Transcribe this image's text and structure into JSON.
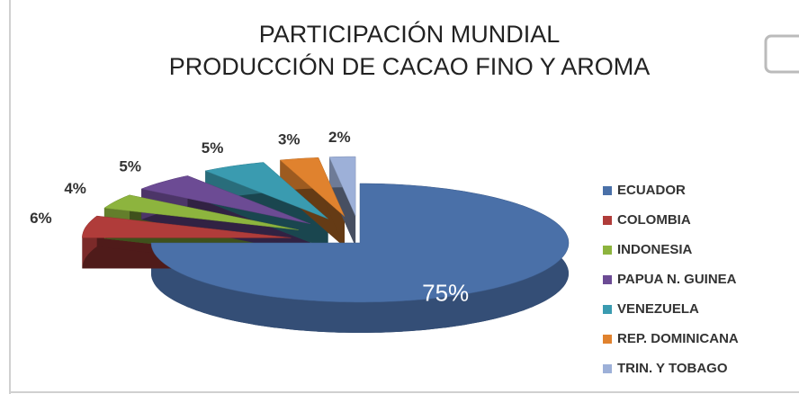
{
  "chart_data": {
    "type": "pie",
    "title": "PARTICIPACIÓN MUNDIAL",
    "subtitle": "PRODUCCIÓN DE CACAO FINO Y AROMA",
    "categories": [
      "ECUADOR",
      "COLOMBIA",
      "INDONESIA",
      "PAPUA N. GUINEA",
      "VENEZUELA",
      "REP. DOMINICANA",
      "TRIN. Y TOBAGO"
    ],
    "values": [
      75,
      6,
      4,
      5,
      5,
      3,
      2
    ],
    "value_labels": [
      "75%",
      "6%",
      "4%",
      "5%",
      "5%",
      "3%",
      "2%"
    ],
    "colors": [
      "#4a70a8",
      "#b03c3a",
      "#8db43e",
      "#6c4b94",
      "#3a9bb0",
      "#e0822e",
      "#9db0d8"
    ],
    "legend": "right"
  }
}
